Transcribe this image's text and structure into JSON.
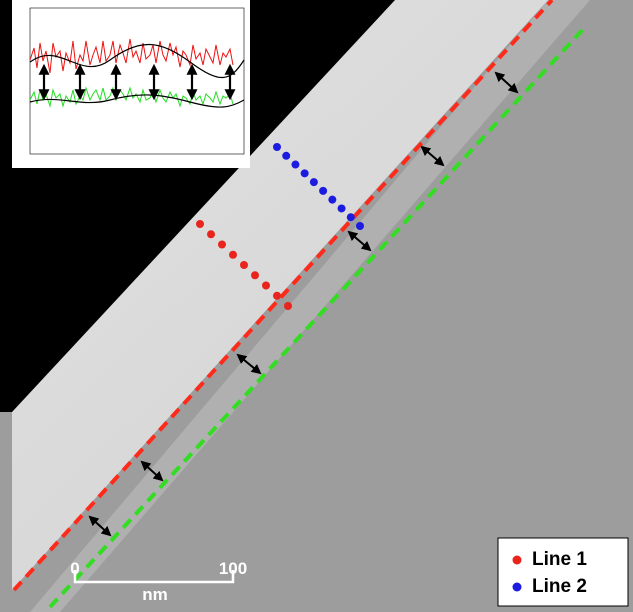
{
  "scale_bar": {
    "start_label": "0",
    "end_label": "100",
    "unit": "nm"
  },
  "legend": [
    {
      "label": "Line 1",
      "color": "#e8241c"
    },
    {
      "label": "Line 2",
      "color": "#1c1ce0"
    }
  ]
}
